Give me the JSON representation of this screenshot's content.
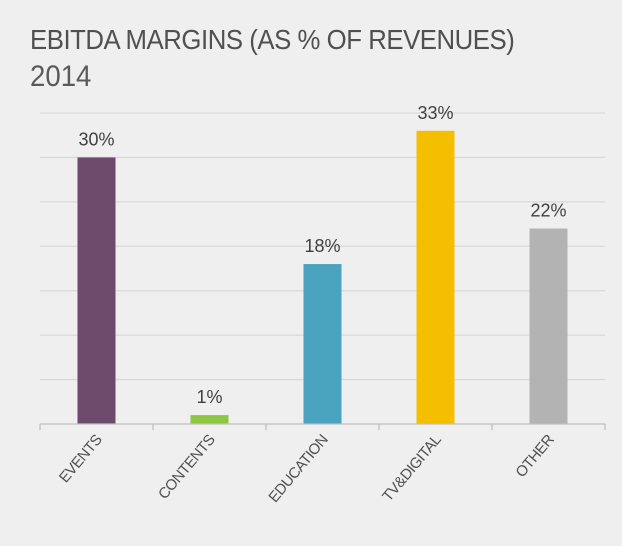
{
  "header": {
    "title": "EBITDA MARGINS (AS % OF REVENUES)",
    "subtitle": "2014"
  },
  "chart_data": {
    "type": "bar",
    "title": "EBITDA MARGINS (AS % OF REVENUES)",
    "subtitle": "2014",
    "categories": [
      "EVENTS",
      "CONTENTS",
      "EDUCATION",
      "TV&DIGITAL",
      "OTHER"
    ],
    "values": [
      30,
      1,
      18,
      33,
      22
    ],
    "value_labels": [
      "30%",
      "1%",
      "18%",
      "33%",
      "22%"
    ],
    "colors": [
      "#6e4a6c",
      "#8dc63f",
      "#4aa3bf",
      "#f5bf00",
      "#b3b3b3"
    ],
    "xlabel": "",
    "ylabel": "",
    "ylim": [
      0,
      35
    ],
    "ytick_step": 5,
    "grid": true,
    "y_axis_labels_visible": false,
    "legend": "none"
  }
}
